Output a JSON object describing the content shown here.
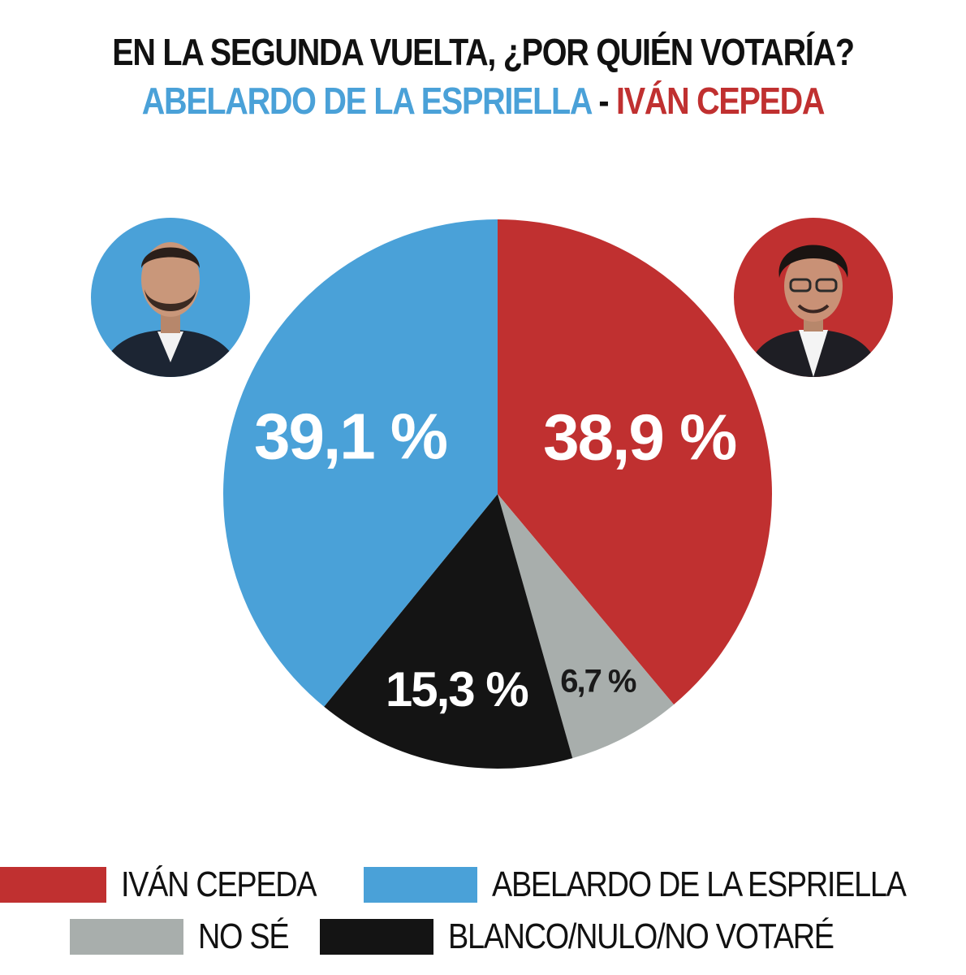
{
  "header": {
    "title": "EN LA SEGUNDA VUELTA, ¿POR QUIÉN VOTARÍA?",
    "subtitle_a": "ABELARDO DE LA ESPRIELLA",
    "subtitle_sep": " - ",
    "subtitle_b": "IVÁN CEPEDA"
  },
  "colors": {
    "cepeda": "#c03030",
    "espriella": "#4aa1d8",
    "no_se": "#a8aeac",
    "blanco": "#141414"
  },
  "chart_data": {
    "type": "pie",
    "title": "EN LA SEGUNDA VUELTA, ¿POR QUIÉN VOTARÍA?",
    "slices": [
      {
        "name": "IVÁN CEPEDA",
        "value": 38.9,
        "label": "38,9 %",
        "color": "#c03030"
      },
      {
        "name": "NO SÉ",
        "value": 6.7,
        "label": "6,7 %",
        "color": "#a8aeac"
      },
      {
        "name": "BLANCO/NULO/NO VOTARÉ",
        "value": 15.3,
        "label": "15,3 %",
        "color": "#141414"
      },
      {
        "name": "ABELARDO DE LA ESPRIELLA",
        "value": 39.1,
        "label": "39,1 %",
        "color": "#4aa1d8"
      }
    ],
    "start": "12 o'clock",
    "direction": "clockwise",
    "legend_position": "bottom"
  },
  "legend": {
    "rows": [
      [
        {
          "label": "IVÁN CEPEDA",
          "color": "#c03030"
        },
        {
          "label": "ABELARDO DE LA ESPRIELLA",
          "color": "#4aa1d8"
        }
      ],
      [
        {
          "label": "NO SÉ",
          "color": "#a8aeac"
        },
        {
          "label": "BLANCO/NULO/NO VOTARÉ",
          "color": "#141414"
        }
      ]
    ]
  },
  "avatars": {
    "left": {
      "icon": "candidate-portrait-icon",
      "color": "#4aa1d8"
    },
    "right": {
      "icon": "candidate-portrait-icon",
      "color": "#c03030"
    }
  }
}
